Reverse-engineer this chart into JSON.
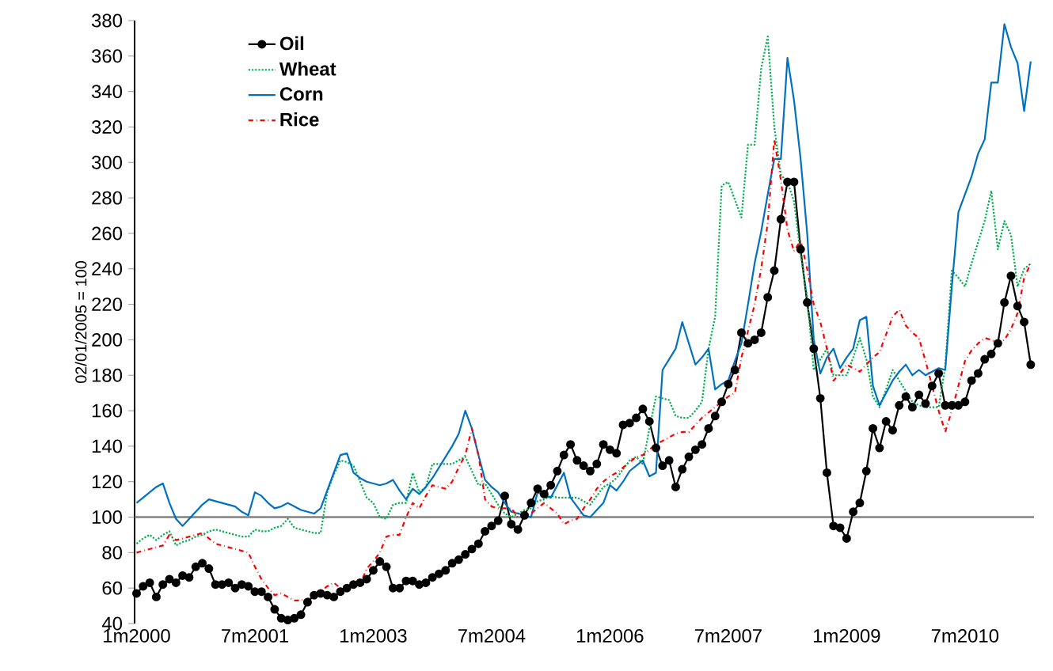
{
  "chart_data": {
    "type": "line",
    "ylabel": "02/01/2005 = 100",
    "categories": [
      "1m2000",
      null,
      null,
      null,
      null,
      null,
      null,
      null,
      null,
      null,
      null,
      null,
      null,
      null,
      null,
      null,
      null,
      null,
      "7m2001",
      null,
      null,
      null,
      null,
      null,
      null,
      null,
      null,
      null,
      null,
      null,
      null,
      null,
      null,
      null,
      null,
      null,
      "1m2003",
      null,
      null,
      null,
      null,
      null,
      null,
      null,
      null,
      null,
      null,
      null,
      null,
      null,
      null,
      null,
      null,
      null,
      "7m2004",
      null,
      null,
      null,
      null,
      null,
      null,
      null,
      null,
      null,
      null,
      null,
      null,
      null,
      null,
      null,
      null,
      null,
      "1m2006",
      null,
      null,
      null,
      null,
      null,
      null,
      null,
      null,
      null,
      null,
      null,
      null,
      null,
      null,
      null,
      null,
      null,
      "7m2007",
      null,
      null,
      null,
      null,
      null,
      null,
      null,
      null,
      null,
      null,
      null,
      null,
      null,
      null,
      null,
      null,
      null,
      "1m2009",
      null,
      null,
      null,
      null,
      null,
      null,
      null,
      null,
      null,
      null,
      null,
      null,
      null,
      null,
      null,
      null,
      null,
      "7m2010",
      null,
      null,
      null,
      null,
      null,
      null,
      null,
      null,
      null,
      null
    ],
    "series": [
      {
        "name": "Oil",
        "color": "#000000",
        "marker": "circle",
        "line_style": "solid",
        "values": [
          57,
          61,
          63,
          55,
          62,
          65,
          63,
          67,
          66,
          72,
          74,
          71,
          62,
          62,
          63,
          60,
          62,
          61,
          58,
          58,
          55,
          48,
          43,
          42,
          43,
          45,
          52,
          56,
          57,
          56,
          55,
          58,
          60,
          62,
          63,
          65,
          70,
          75,
          72,
          60,
          60,
          64,
          64,
          62,
          63,
          66,
          68,
          70,
          74,
          76,
          79,
          82,
          85,
          92,
          95,
          98,
          112,
          96,
          93,
          101,
          108,
          116,
          113,
          118,
          126,
          135,
          141,
          132,
          129,
          126,
          130,
          141,
          138,
          136,
          152,
          153,
          156,
          161,
          154,
          139,
          129,
          132,
          117,
          127,
          134,
          138,
          141,
          150,
          157,
          165,
          175,
          183,
          204,
          198,
          200,
          204,
          224,
          239,
          268,
          289,
          289,
          251,
          221,
          195,
          167,
          125,
          95,
          94,
          88,
          103,
          108,
          126,
          150,
          139,
          154,
          149,
          163,
          168,
          162,
          169,
          164,
          174,
          181,
          163,
          163,
          163,
          165,
          177,
          181,
          189,
          192,
          198,
          221,
          236,
          219,
          210,
          186
        ]
      },
      {
        "name": "Wheat",
        "color": "#00b050",
        "marker": "none",
        "line_style": "dotted",
        "values": [
          85,
          88,
          90,
          87,
          90,
          92,
          84,
          86,
          87,
          89,
          90,
          92,
          93,
          92,
          91,
          90,
          89,
          89,
          93,
          92,
          92,
          94,
          95,
          99,
          94,
          93,
          92,
          91,
          91,
          114,
          124,
          132,
          131,
          129,
          120,
          111,
          108,
          100,
          99,
          107,
          108,
          108,
          125,
          114,
          117,
          130,
          130,
          130,
          130,
          132,
          134,
          126,
          118,
          119,
          113,
          107,
          102,
          100,
          102,
          104,
          105,
          109,
          110,
          112,
          111,
          111,
          111,
          111,
          109,
          107,
          112,
          117,
          119,
          122,
          127,
          132,
          134,
          130,
          150,
          168,
          167,
          166,
          157,
          156,
          156,
          160,
          165,
          195,
          213,
          287,
          289,
          279,
          269,
          310,
          310,
          353,
          371,
          320,
          293,
          289,
          278,
          248,
          224,
          183,
          189,
          195,
          180,
          180,
          180,
          190,
          201,
          189,
          168,
          162,
          172,
          183,
          177,
          171,
          165,
          163,
          162,
          162,
          162,
          185,
          239,
          235,
          230,
          243,
          255,
          267,
          284,
          251,
          267,
          259,
          230,
          240,
          243
        ]
      },
      {
        "name": "Corn",
        "color": "#0070c0",
        "marker": "none",
        "line_style": "solid",
        "values": [
          108,
          111,
          114,
          117,
          119,
          108,
          99,
          95,
          99,
          103,
          107,
          110,
          109,
          108,
          107,
          106,
          103,
          101,
          114,
          112,
          108,
          105,
          106,
          108,
          106,
          104,
          103,
          102,
          105,
          115,
          125,
          135,
          136,
          125,
          122,
          120,
          119,
          118,
          119,
          121,
          115,
          110,
          116,
          113,
          117,
          122,
          128,
          134,
          140,
          147,
          160,
          150,
          135,
          121,
          117,
          114,
          108,
          103,
          102,
          101,
          100,
          114,
          112,
          111,
          118,
          125,
          111,
          106,
          101,
          100,
          104,
          108,
          118,
          115,
          120,
          126,
          129,
          132,
          123,
          125,
          183,
          189,
          195,
          210,
          198,
          186,
          190,
          195,
          172,
          175,
          177,
          188,
          198,
          220,
          243,
          261,
          282,
          302,
          302,
          359,
          335,
          302,
          260,
          200,
          181,
          190,
          195,
          184,
          190,
          195,
          211,
          213,
          174,
          163,
          170,
          177,
          182,
          186,
          180,
          183,
          180,
          182,
          184,
          183,
          230,
          272,
          282,
          292,
          305,
          313,
          345,
          345,
          378,
          365,
          356,
          329,
          357
        ]
      },
      {
        "name": "Rice",
        "color": "#ff0000",
        "marker": "none",
        "line_style": "dashdot",
        "values": [
          80,
          81,
          82,
          83,
          84,
          90,
          87,
          88,
          89,
          90,
          91,
          88,
          85,
          84,
          83,
          82,
          81,
          80,
          72,
          65,
          60,
          56,
          57,
          55,
          53,
          53,
          54,
          54,
          58,
          61,
          63,
          60,
          61,
          62,
          62,
          71,
          75,
          80,
          89,
          90,
          90,
          100,
          108,
          105,
          112,
          118,
          117,
          116,
          120,
          128,
          135,
          150,
          135,
          110,
          106,
          105,
          105,
          105,
          100,
          101,
          102,
          105,
          108,
          105,
          102,
          96,
          98,
          99,
          105,
          110,
          116,
          120,
          123,
          125,
          128,
          131,
          134,
          135,
          138,
          141,
          143,
          145,
          147,
          148,
          148,
          152,
          156,
          159,
          162,
          165,
          168,
          170,
          190,
          205,
          220,
          240,
          266,
          313,
          290,
          262,
          250,
          256,
          240,
          220,
          210,
          195,
          177,
          181,
          186,
          184,
          182,
          186,
          190,
          193,
          203,
          213,
          217,
          208,
          204,
          201,
          188,
          174,
          160,
          148,
          160,
          174,
          188,
          194,
          198,
          201,
          200,
          198,
          200,
          206,
          215,
          235,
          243
        ]
      }
    ],
    "ylim": [
      40,
      380
    ],
    "yticks": [
      40,
      60,
      80,
      100,
      120,
      140,
      160,
      180,
      200,
      220,
      240,
      260,
      280,
      300,
      320,
      340,
      360,
      380
    ],
    "ref_lines": [
      {
        "axis": "y",
        "value": 100,
        "color": "#808080"
      }
    ],
    "legend": "top left",
    "grid": false
  }
}
